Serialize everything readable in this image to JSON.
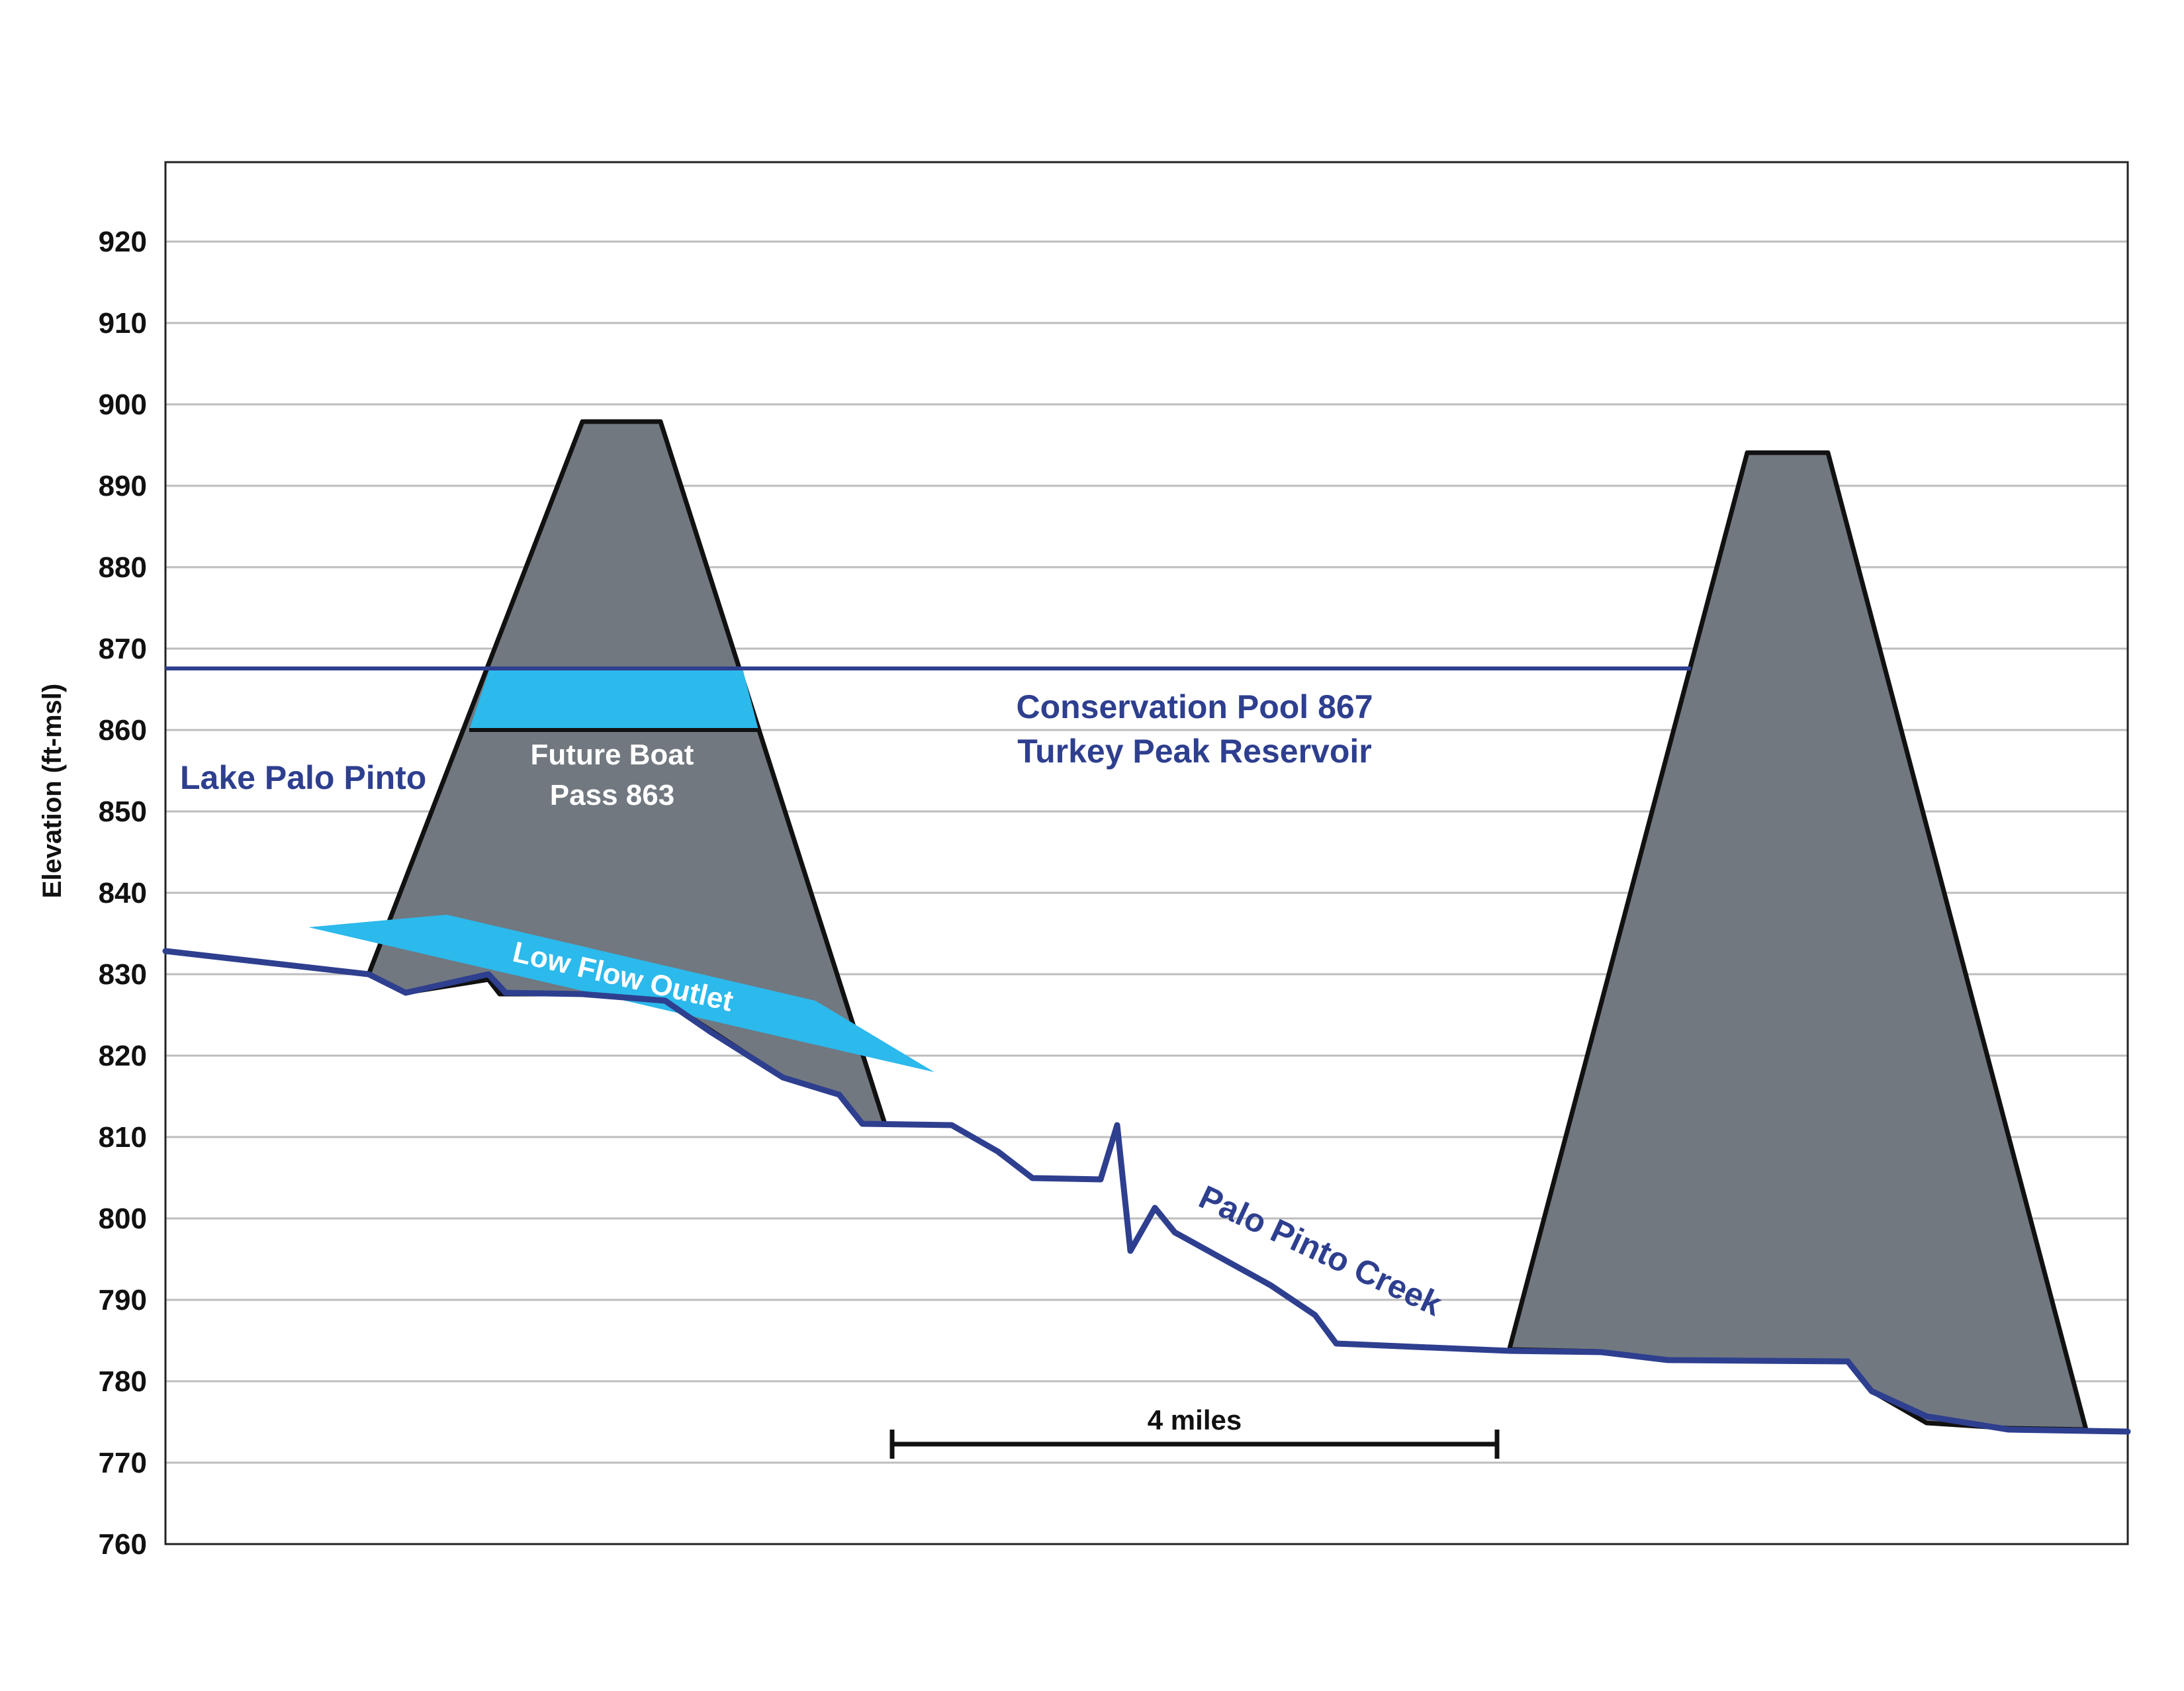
{
  "y_axis": {
    "label": "Elevation (ft-msl)",
    "ticks": [
      "920",
      "910",
      "900",
      "890",
      "880",
      "870",
      "860",
      "850",
      "840",
      "830",
      "820",
      "810",
      "800",
      "790",
      "780",
      "770",
      "760"
    ]
  },
  "labels": {
    "lake_palo_pinto": "Lake Palo Pinto",
    "future_boat_pass_line1": "Future Boat",
    "future_boat_pass_line2": "Pass 863",
    "low_flow_outlet": "Low Flow Outlet",
    "conservation_pool_line1": "Conservation Pool 867",
    "conservation_pool_line2": "Turkey Peak Reservoir",
    "creek": "Palo Pinto Creek",
    "scale_bar": "4 miles"
  },
  "colors": {
    "dam_fill": "#717880",
    "water_line": "#2e3f8f",
    "light_blue": "#2cb9ec",
    "grid": "#bdbdbd",
    "frame": "#222222"
  }
}
